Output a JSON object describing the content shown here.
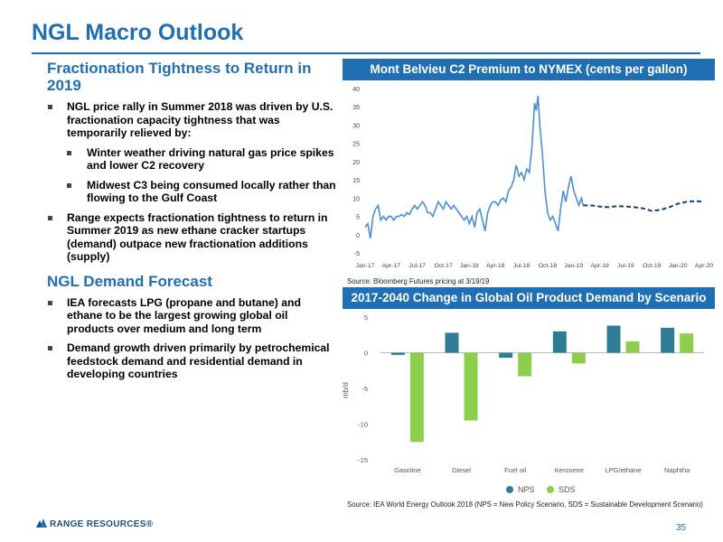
{
  "slide": {
    "title": "NGL Macro Outlook",
    "page_number": "35",
    "logo_text": "RANGE RESOURCES®",
    "brand_color": "#1f6fb2"
  },
  "left": {
    "section1_heading": "Fractionation Tightness to Return in 2019",
    "section1_bullets": [
      "NGL price rally in Summer 2018 was driven by U.S. fractionation capacity tightness that was temporarily relieved by:",
      "Winter weather driving natural gas price spikes and lower C2 recovery",
      "Midwest C3 being consumed locally rather than flowing to the Gulf Coast",
      "Range expects fractionation tightness to return in Summer 2019 as new ethane cracker startups (demand) outpace new fractionation additions (supply)"
    ],
    "section2_heading": "NGL Demand Forecast",
    "section2_bullets": [
      "IEA forecasts LPG (propane and butane) and ethane to be the largest growing global oil products over medium and long term",
      "Demand growth driven primarily by petrochemical feedstock demand and residential demand in developing countries"
    ]
  },
  "chart1": {
    "header": "Mont Belvieu C2 Premium to NYMEX (cents per gallon)",
    "source": "Source: Bloomberg Futures pricing at 3/19/19"
  },
  "chart2": {
    "header": "2017-2040 Change in Global Oil Product Demand by Scenario",
    "source": "Source: IEA World Energy Outlook 2018 (NPS = New Policy Scenario, SDS = Sustainable Development Scenario)",
    "legend": [
      "NPS",
      "SDS"
    ]
  },
  "chart_data": [
    {
      "type": "line",
      "title": "Mont Belvieu C2 Premium to NYMEX (cents per gallon)",
      "ylim": [
        -5,
        40
      ],
      "yticks": [
        "-5",
        "0",
        "5",
        "10",
        "15",
        "20",
        "25",
        "30",
        "35",
        "40"
      ],
      "xticks": [
        "Jan-17",
        "Apr-17",
        "Jul-17",
        "Oct-17",
        "Jan-18",
        "Apr-18",
        "Jul-18",
        "Oct-18",
        "Jan-19",
        "Apr-19",
        "Jul-19",
        "Oct-19",
        "Jan-20",
        "Apr-20"
      ],
      "grid": false,
      "series": [
        {
          "style": "solid",
          "color": "#4a8fd6",
          "points": [
            [
              0,
              2
            ],
            [
              0.3,
              3
            ],
            [
              0.6,
              -1
            ],
            [
              0.9,
              5
            ],
            [
              1.2,
              7
            ],
            [
              1.5,
              8
            ],
            [
              1.8,
              4
            ],
            [
              2.1,
              5
            ],
            [
              2.4,
              4
            ],
            [
              2.7,
              5
            ],
            [
              3,
              5
            ],
            [
              3.3,
              4
            ],
            [
              3.6,
              5
            ],
            [
              3.9,
              5
            ],
            [
              4.2,
              5.5
            ],
            [
              4.5,
              5
            ],
            [
              4.8,
              6
            ],
            [
              5.1,
              5.5
            ],
            [
              5.4,
              7
            ],
            [
              5.7,
              8
            ],
            [
              6,
              7
            ],
            [
              6.3,
              8
            ],
            [
              6.6,
              9
            ],
            [
              6.9,
              8
            ],
            [
              7.2,
              6
            ],
            [
              7.5,
              6
            ],
            [
              7.8,
              5
            ],
            [
              8.1,
              7
            ],
            [
              8.4,
              9
            ],
            [
              8.7,
              8
            ],
            [
              9,
              7
            ],
            [
              9.3,
              9
            ],
            [
              9.6,
              8
            ],
            [
              9.9,
              7
            ],
            [
              10.2,
              8
            ],
            [
              10.5,
              7
            ],
            [
              10.8,
              6
            ],
            [
              11.1,
              5
            ],
            [
              11.4,
              4
            ],
            [
              11.7,
              5
            ],
            [
              12,
              3
            ],
            [
              12.3,
              5
            ],
            [
              12.6,
              2
            ],
            [
              12.9,
              6
            ],
            [
              13.2,
              7
            ],
            [
              13.5,
              4
            ],
            [
              13.8,
              1
            ],
            [
              14.1,
              6
            ],
            [
              14.4,
              8
            ],
            [
              14.7,
              9
            ],
            [
              15,
              9
            ],
            [
              15.3,
              8
            ],
            [
              15.6,
              9.5
            ],
            [
              15.9,
              10
            ],
            [
              16.2,
              9
            ],
            [
              16.5,
              12
            ],
            [
              16.8,
              13
            ],
            [
              17.1,
              15
            ],
            [
              17.4,
              19
            ],
            [
              17.7,
              16
            ],
            [
              18,
              17
            ],
            [
              18.3,
              15
            ],
            [
              18.6,
              18
            ],
            [
              18.9,
              17
            ],
            [
              19.2,
              24
            ],
            [
              19.5,
              36
            ],
            [
              19.7,
              34
            ],
            [
              19.9,
              38
            ],
            [
              20.1,
              30
            ],
            [
              20.4,
              22
            ],
            [
              20.7,
              12
            ],
            [
              21,
              6
            ],
            [
              21.3,
              4
            ],
            [
              21.6,
              5
            ],
            [
              21.9,
              3
            ],
            [
              22.2,
              1
            ],
            [
              22.5,
              7
            ],
            [
              22.8,
              12
            ],
            [
              23.1,
              9
            ],
            [
              23.4,
              13
            ],
            [
              23.7,
              16
            ],
            [
              24,
              12
            ],
            [
              24.3,
              10
            ],
            [
              24.6,
              8
            ],
            [
              24.9,
              10
            ],
            [
              25.1,
              8
            ]
          ]
        },
        {
          "style": "dashed",
          "color": "#16407a",
          "points": [
            [
              25.1,
              8
            ],
            [
              26,
              8
            ],
            [
              27,
              7.7
            ],
            [
              28,
              7.5
            ],
            [
              29,
              7.8
            ],
            [
              30,
              7.7
            ],
            [
              31,
              7.5
            ],
            [
              32,
              7.2
            ],
            [
              33,
              6.5
            ],
            [
              34,
              6.8
            ],
            [
              35,
              7.5
            ],
            [
              36,
              8.5
            ],
            [
              37,
              9
            ],
            [
              38,
              9.2
            ],
            [
              39,
              9
            ]
          ]
        }
      ]
    },
    {
      "type": "bar",
      "title": "2017-2040 Change in Global Oil Product Demand by Scenario",
      "ylabel": "mb/d",
      "ylim": [
        -15,
        5
      ],
      "yticks": [
        "5",
        "0",
        "-5",
        "-10",
        "-15"
      ],
      "categories": [
        "Gasoline",
        "Diesel",
        "Fuel oil",
        "Kerosene",
        "LPG/ethane",
        "Naphtha"
      ],
      "series": [
        {
          "name": "NPS",
          "color": "#2e7d95",
          "values": [
            -0.3,
            2.8,
            -0.7,
            3.0,
            3.8,
            3.5
          ]
        },
        {
          "name": "SDS",
          "color": "#8ccf4c",
          "values": [
            -12.5,
            -9.5,
            -3.3,
            -1.5,
            1.6,
            2.7
          ]
        }
      ]
    }
  ]
}
